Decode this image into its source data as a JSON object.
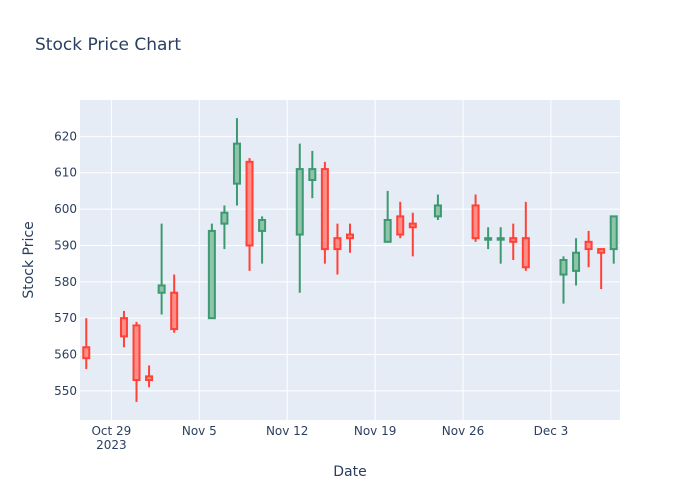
{
  "chart_data": {
    "type": "candlestick",
    "title": "Stock Price Chart",
    "xlabel": "Date",
    "ylabel": "Stock Price",
    "ylim": [
      542,
      630
    ],
    "xlim": [
      "2023-10-26T12:00",
      "2023-12-08T12:00"
    ],
    "yticks": [
      550,
      560,
      570,
      580,
      590,
      600,
      610,
      620
    ],
    "xticks": [
      {
        "date": "2023-10-29",
        "label": "Oct 29",
        "sublabel": "2023"
      },
      {
        "date": "2023-11-05",
        "label": "Nov 5",
        "sublabel": ""
      },
      {
        "date": "2023-11-12",
        "label": "Nov 12",
        "sublabel": ""
      },
      {
        "date": "2023-11-19",
        "label": "Nov 19",
        "sublabel": ""
      },
      {
        "date": "2023-11-26",
        "label": "Nov 26",
        "sublabel": ""
      },
      {
        "date": "2023-12-03",
        "label": "Dec 3",
        "sublabel": ""
      }
    ],
    "colors": {
      "increasing_line": "#3D9970",
      "increasing_fill": "#8EC4A9",
      "decreasing_line": "#FF4136",
      "decreasing_fill": "#FF8C86",
      "plot_bg": "#E5ECF6",
      "grid": "#ffffff",
      "text": "#2a3f5f"
    },
    "grid": true,
    "candles": [
      {
        "date": "2023-10-27",
        "open": 562,
        "high": 570,
        "low": 556,
        "close": 559
      },
      {
        "date": "2023-10-30",
        "open": 570,
        "high": 572,
        "low": 562,
        "close": 565
      },
      {
        "date": "2023-10-31",
        "open": 568,
        "high": 569,
        "low": 547,
        "close": 553
      },
      {
        "date": "2023-11-01",
        "open": 554,
        "high": 557,
        "low": 551,
        "close": 553
      },
      {
        "date": "2023-11-02",
        "open": 577,
        "high": 596,
        "low": 571,
        "close": 579
      },
      {
        "date": "2023-11-03",
        "open": 577,
        "high": 582,
        "low": 566,
        "close": 567
      },
      {
        "date": "2023-11-06",
        "open": 570,
        "high": 596,
        "low": 570,
        "close": 594
      },
      {
        "date": "2023-11-07",
        "open": 596,
        "high": 601,
        "low": 589,
        "close": 599
      },
      {
        "date": "2023-11-08",
        "open": 607,
        "high": 625,
        "low": 601,
        "close": 618
      },
      {
        "date": "2023-11-09",
        "open": 613,
        "high": 614,
        "low": 583,
        "close": 590
      },
      {
        "date": "2023-11-10",
        "open": 594,
        "high": 598,
        "low": 585,
        "close": 597
      },
      {
        "date": "2023-11-13",
        "open": 593,
        "high": 618,
        "low": 577,
        "close": 611
      },
      {
        "date": "2023-11-14",
        "open": 608,
        "high": 616,
        "low": 603,
        "close": 611
      },
      {
        "date": "2023-11-15",
        "open": 611,
        "high": 613,
        "low": 585,
        "close": 589
      },
      {
        "date": "2023-11-16",
        "open": 592,
        "high": 596,
        "low": 582,
        "close": 589
      },
      {
        "date": "2023-11-17",
        "open": 593,
        "high": 596,
        "low": 588,
        "close": 592
      },
      {
        "date": "2023-11-20",
        "open": 591,
        "high": 605,
        "low": 591,
        "close": 597
      },
      {
        "date": "2023-11-21",
        "open": 598,
        "high": 602,
        "low": 592,
        "close": 593
      },
      {
        "date": "2023-11-22",
        "open": 596,
        "high": 599,
        "low": 587,
        "close": 595
      },
      {
        "date": "2023-11-24",
        "open": 598,
        "high": 604,
        "low": 597,
        "close": 601
      },
      {
        "date": "2023-11-27",
        "open": 601,
        "high": 604,
        "low": 591,
        "close": 592
      },
      {
        "date": "2023-11-28",
        "open": 592,
        "high": 595,
        "low": 589,
        "close": 592
      },
      {
        "date": "2023-11-29",
        "open": 592,
        "high": 595,
        "low": 585,
        "close": 592
      },
      {
        "date": "2023-11-30",
        "open": 592,
        "high": 596,
        "low": 586,
        "close": 591
      },
      {
        "date": "2023-12-01",
        "open": 592,
        "high": 602,
        "low": 583,
        "close": 584
      },
      {
        "date": "2023-12-04",
        "open": 582,
        "high": 587,
        "low": 574,
        "close": 586
      },
      {
        "date": "2023-12-05",
        "open": 583,
        "high": 592,
        "low": 579,
        "close": 588
      },
      {
        "date": "2023-12-06",
        "open": 591,
        "high": 594,
        "low": 584,
        "close": 589
      },
      {
        "date": "2023-12-07",
        "open": 589,
        "high": 589,
        "low": 578,
        "close": 588
      },
      {
        "date": "2023-12-08",
        "open": 589,
        "high": 598,
        "low": 585,
        "close": 598
      }
    ]
  }
}
